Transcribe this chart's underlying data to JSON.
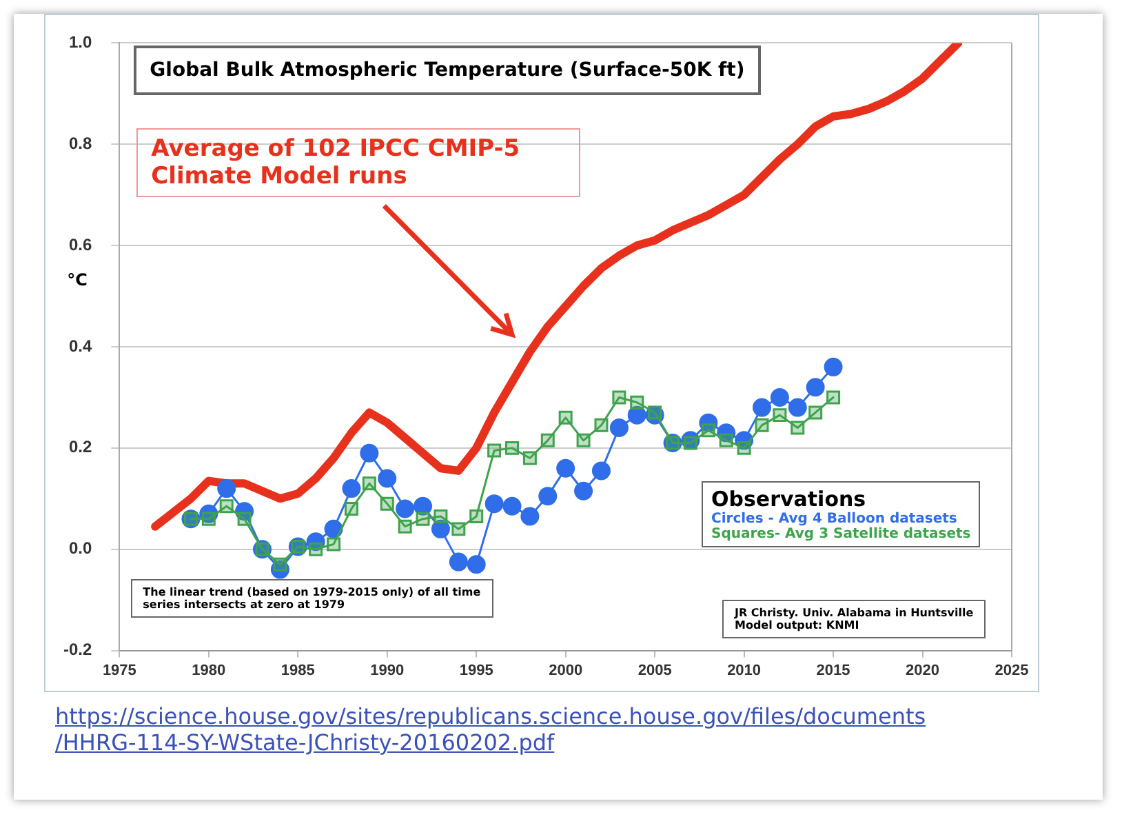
{
  "chart_data": {
    "type": "line",
    "title": "Global Bulk Atmospheric Temperature (Surface-50K ft)",
    "ylabel": "°C",
    "legend_title": "Observations",
    "legend": "bottom right",
    "grid": "y",
    "line_style": "solid",
    "xlim": [
      1975,
      2025
    ],
    "xticks": [
      1975,
      1980,
      1985,
      1990,
      1995,
      2000,
      2005,
      2010,
      2015,
      2020,
      2025
    ],
    "ylim": [
      -0.2,
      1.0
    ],
    "yticks": [
      {
        "value": -0.2,
        "label": "-0.2"
      },
      {
        "value": 0,
        "label": "0.0"
      },
      {
        "value": 0.2,
        "label": "0.2"
      },
      {
        "value": 0.4,
        "label": "0.4"
      },
      {
        "value": 0.6,
        "label": "0.6"
      },
      {
        "value": 0.8,
        "label": "0.8"
      },
      {
        "value": 1.0,
        "label": "1.0"
      }
    ],
    "series": [
      {
        "color": "#e8311c",
        "marker": "none",
        "x": [
          1977,
          1979,
          1980,
          1981,
          1982,
          1983,
          1984,
          1985,
          1986,
          1987,
          1988,
          1989,
          1990,
          1991,
          1992,
          1993,
          1994,
          1995,
          1996,
          1997,
          1998,
          1999,
          2000,
          2001,
          2002,
          2003,
          2004,
          2005,
          2006,
          2007,
          2008,
          2009,
          2010,
          2011,
          2012,
          2013,
          2014,
          2015,
          2016,
          2017,
          2018,
          2019,
          2020,
          2021,
          2022
        ],
        "values": [
          0.045,
          0.1,
          0.135,
          0.13,
          0.13,
          0.115,
          0.1,
          0.11,
          0.14,
          0.18,
          0.23,
          0.27,
          0.25,
          0.22,
          0.19,
          0.16,
          0.155,
          0.2,
          0.27,
          0.33,
          0.39,
          0.44,
          0.48,
          0.52,
          0.555,
          0.58,
          0.6,
          0.61,
          0.63,
          0.645,
          0.66,
          0.68,
          0.7,
          0.735,
          0.77,
          0.8,
          0.835,
          0.855,
          0.86,
          0.87,
          0.885,
          0.905,
          0.93,
          0.965,
          1.0
        ]
      },
      {
        "name": "Circles - Avg 4 Balloon datasets",
        "color": "#2f6ee8",
        "marker": "circle",
        "x": [
          1979,
          1980,
          1981,
          1982,
          1983,
          1984,
          1985,
          1986,
          1987,
          1988,
          1989,
          1990,
          1991,
          1992,
          1993,
          1994,
          1995,
          1996,
          1997,
          1998,
          1999,
          2000,
          2001,
          2002,
          2003,
          2004,
          2005,
          2006,
          2007,
          2008,
          2009,
          2010,
          2011,
          2012,
          2013,
          2014,
          2015
        ],
        "values": [
          0.06,
          0.07,
          0.12,
          0.075,
          0.0,
          -0.04,
          0.005,
          0.015,
          0.04,
          0.12,
          0.19,
          0.14,
          0.08,
          0.085,
          0.04,
          -0.025,
          -0.03,
          0.09,
          0.085,
          0.065,
          0.105,
          0.16,
          0.115,
          0.155,
          0.24,
          0.265,
          0.265,
          0.21,
          0.215,
          0.25,
          0.23,
          0.215,
          0.28,
          0.3,
          0.28,
          0.32,
          0.36
        ]
      },
      {
        "name": "Squares- Avg 3 Satellite datasets",
        "color": "#3fa34d",
        "marker": "square",
        "x": [
          1979,
          1980,
          1981,
          1982,
          1983,
          1984,
          1985,
          1986,
          1987,
          1988,
          1989,
          1990,
          1991,
          1992,
          1993,
          1994,
          1995,
          1996,
          1997,
          1998,
          1999,
          2000,
          2001,
          2002,
          2003,
          2004,
          2005,
          2006,
          2007,
          2008,
          2009,
          2010,
          2011,
          2012,
          2013,
          2014,
          2015
        ],
        "values": [
          0.06,
          0.06,
          0.085,
          0.06,
          0.0,
          -0.03,
          0.005,
          0.0,
          0.01,
          0.08,
          0.13,
          0.09,
          0.045,
          0.06,
          0.065,
          0.04,
          0.065,
          0.195,
          0.2,
          0.18,
          0.215,
          0.26,
          0.215,
          0.245,
          0.3,
          0.29,
          0.27,
          0.21,
          0.21,
          0.235,
          0.215,
          0.2,
          0.245,
          0.265,
          0.24,
          0.27,
          0.3
        ]
      }
    ],
    "annotations": [
      "Average of 102 IPCC CMIP-5 Climate Model runs",
      "The linear trend (based on 1979-2015 only) of all time\nseries intersects at zero at 1979",
      "JR Christy. Univ. Alabama in Huntsville\nModel output: KNMI",
      "https://science.house.gov/sites/republicans.science.house.gov/files/documents\n/HHRG-114-SY-WState-JChristy-20160202.pdf"
    ]
  }
}
